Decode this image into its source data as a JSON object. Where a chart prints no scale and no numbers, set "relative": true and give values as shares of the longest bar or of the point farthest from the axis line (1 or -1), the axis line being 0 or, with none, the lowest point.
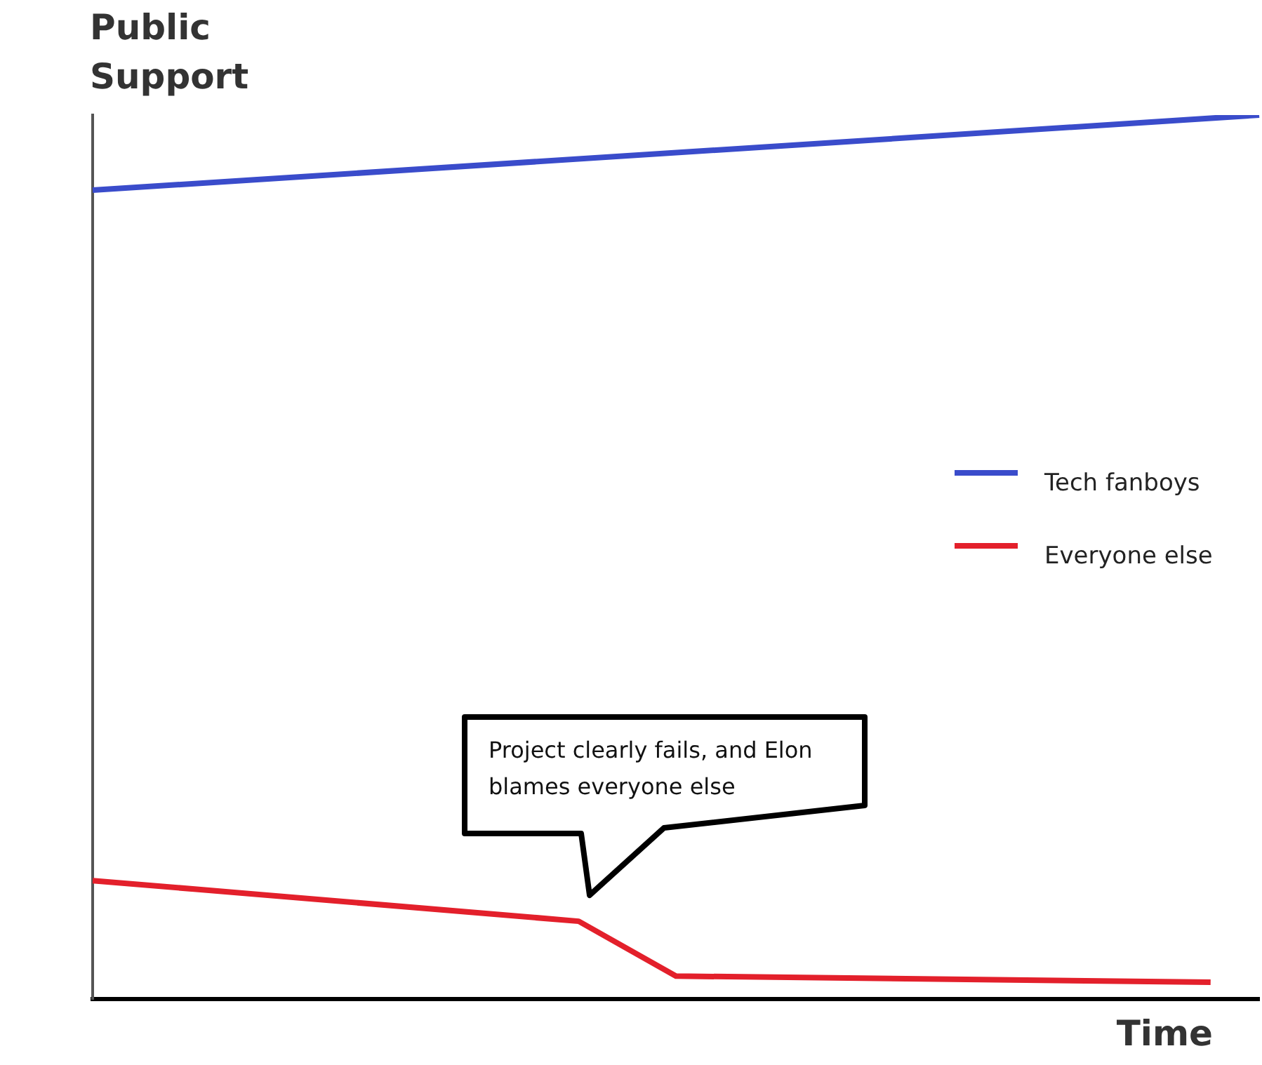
{
  "chart_data": {
    "type": "line",
    "relative": true,
    "ylabel": "Public Support",
    "xlabel": "Time",
    "categories": [
      null,
      null,
      null,
      null,
      null,
      null,
      null,
      null,
      null,
      null,
      null,
      null,
      null,
      null,
      null,
      null,
      null,
      null,
      null,
      null,
      null,
      null,
      null,
      null,
      null
    ],
    "series": [
      {
        "name": "Tech fanboys",
        "color": "#3a4ccb",
        "values": [
          0.915,
          null,
          null,
          null,
          null,
          null,
          null,
          null,
          null,
          null,
          null,
          null,
          null,
          null,
          null,
          null,
          null,
          null,
          null,
          null,
          null,
          null,
          null,
          null,
          1
        ]
      },
      {
        "name": "Everyone else",
        "color": "#e3202b",
        "values": [
          0.134,
          null,
          null,
          null,
          null,
          null,
          null,
          null,
          null,
          null,
          0.088,
          null,
          0.026,
          null,
          null,
          null,
          null,
          null,
          null,
          null,
          null,
          null,
          null,
          0.019,
          null
        ]
      }
    ],
    "annotations": [
      "Project clearly fails, and Elon blames everyone else"
    ],
    "legend": "right",
    "grid": false,
    "marker": "none",
    "line_style": "solid"
  }
}
